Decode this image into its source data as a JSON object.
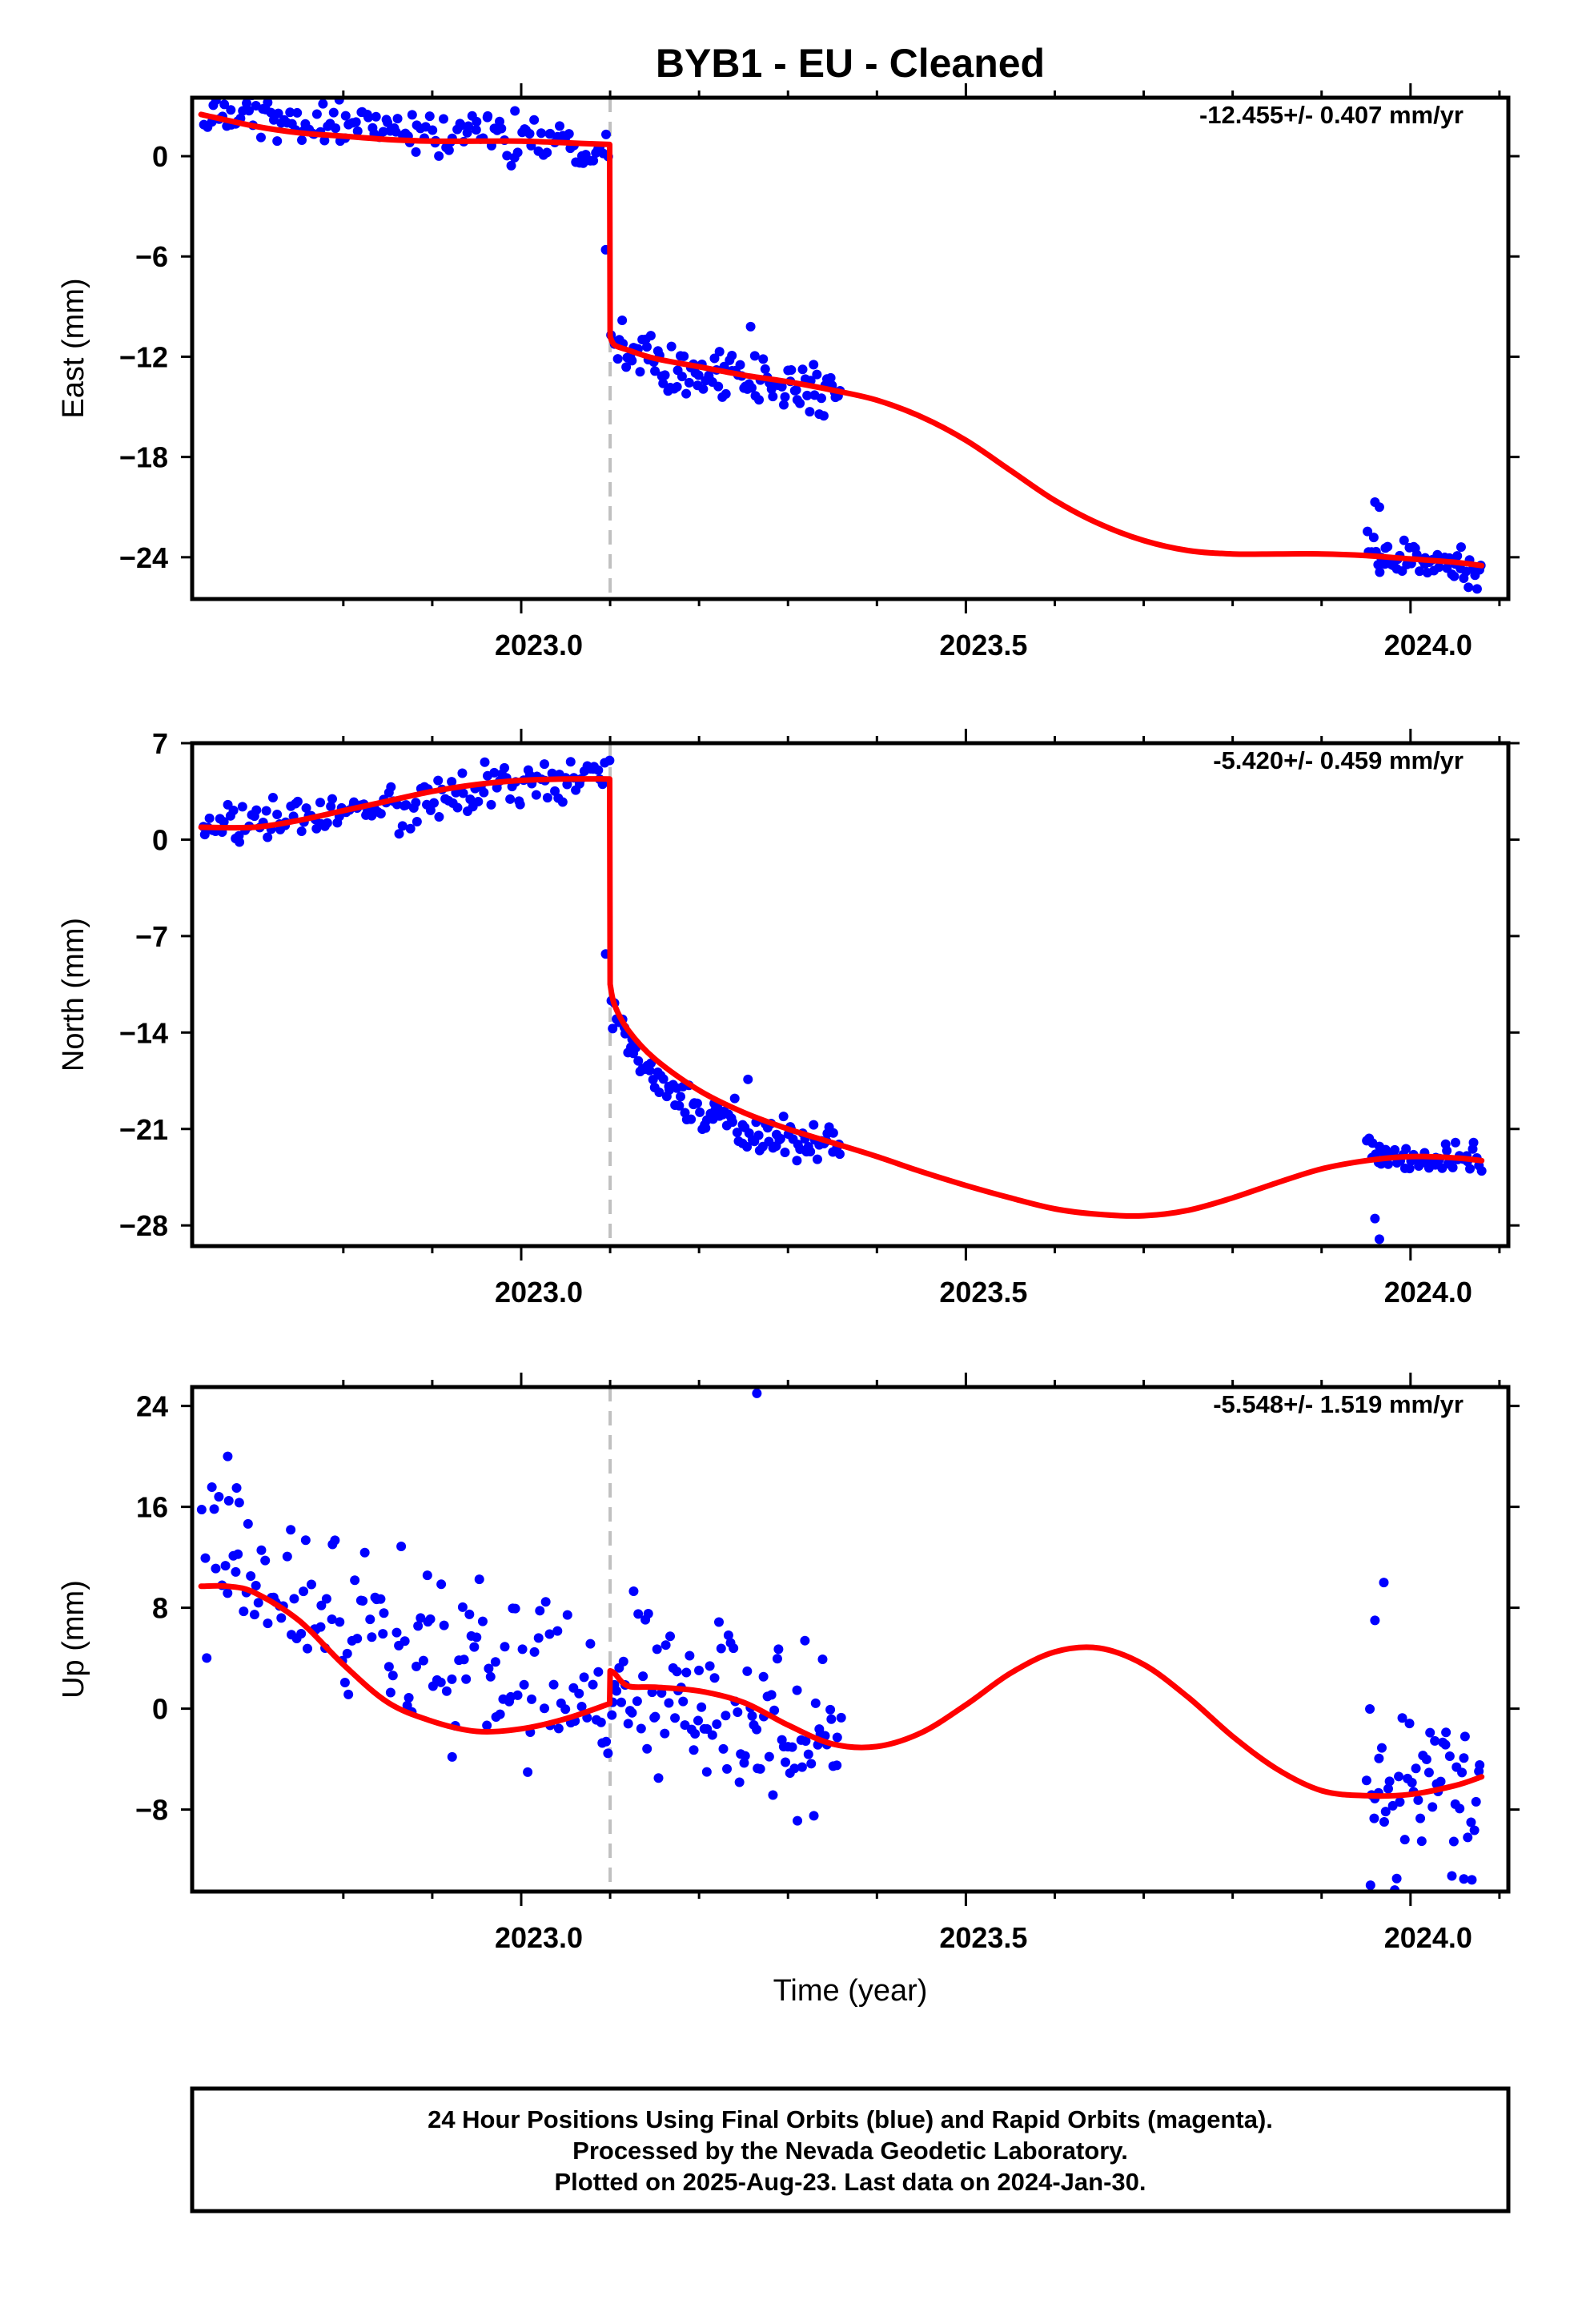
{
  "title": "BYB1  - EU - Cleaned",
  "x_axis": {
    "label": "Time (year)",
    "range": [
      2022.63,
      2024.11
    ],
    "major_ticks": [
      2023.0,
      2023.5,
      2024.0
    ],
    "major_tick_labels": [
      "2023.0",
      "2023.5",
      "2024.0"
    ],
    "minor_ticks": [
      2022.8,
      2022.9,
      2023.1,
      2023.2,
      2023.3,
      2023.4,
      2023.6,
      2023.7,
      2023.8,
      2023.9,
      2024.1
    ]
  },
  "offset_marker_epoch": 2023.1,
  "colors": {
    "final_orbits": "#0000ff",
    "model": "#ff0000",
    "offset_marker": "#c0c0c0"
  },
  "chart_data": [
    {
      "type": "scatter",
      "component": "East",
      "ylabel": "East (mm)",
      "ylim": [
        -26.5,
        3.5
      ],
      "y_ticks": [
        0,
        -6,
        -12,
        -18,
        -24
      ],
      "y_tick_labels": [
        "0",
        "−6",
        "−12",
        "−18",
        "−24"
      ],
      "rate_label": "-12.455+/- 0.407 mm/yr",
      "series": [
        {
          "kind": "points",
          "clusters": [
            {
              "x_range": [
                2022.64,
                2023.1
              ],
              "pattern": "trend",
              "y_start": 2.5,
              "y_end": 0.8,
              "spread": 1.6,
              "count": 150
            },
            {
              "x_range": [
                2023.1,
                2023.36
              ],
              "pattern": "postseismic",
              "y_start": -10.5,
              "y_end": -14.0,
              "spread": 1.7,
              "count": 110
            },
            {
              "x_range": [
                2023.95,
                2024.08
              ],
              "pattern": "trend",
              "y_start": -23.7,
              "y_end": -24.8,
              "spread": 1.3,
              "count": 55
            }
          ],
          "outliers": [
            [
              2023.095,
              -5.6
            ],
            [
              2023.96,
              -20.7
            ],
            [
              2023.965,
              -21.0
            ],
            [
              2023.258,
              -10.2
            ]
          ]
        },
        {
          "kind": "model",
          "x": [
            2022.64,
            2022.7,
            2022.75,
            2022.8,
            2022.85,
            2022.9,
            2022.95,
            2023.0,
            2023.05,
            2023.0995,
            2023.1,
            2023.105,
            2023.12,
            2023.15,
            2023.2,
            2023.25,
            2023.3,
            2023.35,
            2023.4,
            2023.45,
            2023.5,
            2023.55,
            2023.6,
            2023.65,
            2023.7,
            2023.75,
            2023.8,
            2023.85,
            2023.9,
            2023.95,
            2024.0,
            2024.05,
            2024.08
          ],
          "y": [
            2.5,
            1.8,
            1.4,
            1.2,
            1.0,
            0.9,
            0.9,
            0.9,
            0.8,
            0.7,
            -10.8,
            -11.3,
            -11.6,
            -12.1,
            -12.6,
            -13.1,
            -13.5,
            -14.0,
            -14.6,
            -15.6,
            -17.0,
            -18.8,
            -20.6,
            -22.0,
            -23.0,
            -23.6,
            -23.8,
            -23.8,
            -23.8,
            -23.9,
            -24.1,
            -24.3,
            -24.5
          ]
        }
      ]
    },
    {
      "type": "scatter",
      "component": "North",
      "ylabel": "North (mm)",
      "ylim": [
        -29.5,
        7
      ],
      "y_ticks": [
        7,
        0,
        -7,
        -14,
        -21,
        -28
      ],
      "y_tick_labels": [
        "7",
        "0",
        "−7",
        "−14",
        "−21",
        "−28"
      ],
      "rate_label": "-5.420+/- 0.459 mm/yr",
      "series": [
        {
          "kind": "points",
          "clusters": [
            {
              "x_range": [
                2022.64,
                2023.1
              ],
              "pattern": "trend",
              "y_start": 0.5,
              "y_end": 4.8,
              "spread": 1.8,
              "count": 150
            },
            {
              "x_range": [
                2023.1,
                2023.36
              ],
              "pattern": "postseismic",
              "y_start": -12.5,
              "y_end": -22.3,
              "spread": 1.8,
              "count": 110
            },
            {
              "x_range": [
                2023.95,
                2024.08
              ],
              "pattern": "trend",
              "y_start": -22.8,
              "y_end": -23.5,
              "spread": 1.4,
              "count": 55
            }
          ],
          "outliers": [
            [
              2023.095,
              -8.3
            ],
            [
              2023.965,
              -29.0
            ],
            [
              2023.96,
              -27.5
            ],
            [
              2023.255,
              -17.4
            ]
          ]
        },
        {
          "kind": "model",
          "x": [
            2022.64,
            2022.7,
            2022.75,
            2022.8,
            2022.85,
            2022.9,
            2022.95,
            2023.0,
            2023.05,
            2023.0995,
            2023.1,
            2023.105,
            2023.12,
            2023.15,
            2023.2,
            2023.25,
            2023.3,
            2023.35,
            2023.4,
            2023.45,
            2023.5,
            2023.55,
            2023.6,
            2023.65,
            2023.7,
            2023.75,
            2023.8,
            2023.85,
            2023.9,
            2023.95,
            2024.0,
            2024.05,
            2024.08
          ],
          "y": [
            0.9,
            0.9,
            1.4,
            2.1,
            2.8,
            3.5,
            4.0,
            4.3,
            4.4,
            4.4,
            -10.5,
            -12.0,
            -13.8,
            -15.9,
            -18.2,
            -19.8,
            -21.0,
            -22.0,
            -23.0,
            -24.1,
            -25.1,
            -26.0,
            -26.8,
            -27.2,
            -27.3,
            -26.9,
            -26.0,
            -24.9,
            -23.9,
            -23.3,
            -23.0,
            -23.1,
            -23.3
          ]
        }
      ]
    },
    {
      "type": "scatter",
      "component": "Up",
      "ylabel": "Up (mm)",
      "ylim": [
        -14.5,
        25.5
      ],
      "y_ticks": [
        24,
        16,
        8,
        0,
        -8
      ],
      "y_tick_labels": [
        "24",
        "16",
        "8",
        "0",
        "−8"
      ],
      "rate_label": "-5.548+/- 1.519 mm/yr",
      "series": [
        {
          "kind": "points",
          "clusters": [
            {
              "x_range": [
                2022.64,
                2023.1
              ],
              "pattern": "trend",
              "y_start": 12.0,
              "y_end": -1.0,
              "spread": 7.0,
              "count": 150
            },
            {
              "x_range": [
                2023.1,
                2023.36
              ],
              "pattern": "trend",
              "y_start": 2.0,
              "y_end": -3.0,
              "spread": 7.0,
              "count": 110
            },
            {
              "x_range": [
                2023.95,
                2024.08
              ],
              "pattern": "trend",
              "y_start": -6.5,
              "y_end": -5.5,
              "spread": 7.0,
              "count": 55
            }
          ],
          "outliers": [
            [
              2023.265,
              25.0
            ],
            [
              2022.67,
              20.0
            ],
            [
              2022.68,
              17.5
            ],
            [
              2023.97,
              10.0
            ],
            [
              2023.96,
              7.0
            ],
            [
              2023.955,
              -14.0
            ],
            [
              2024.06,
              -13.5
            ]
          ]
        },
        {
          "kind": "model",
          "x": [
            2022.64,
            2022.67,
            2022.7,
            2022.75,
            2022.8,
            2022.85,
            2022.9,
            2022.95,
            2023.0,
            2023.05,
            2023.0995,
            2023.1,
            2023.105,
            2023.12,
            2023.15,
            2023.2,
            2023.25,
            2023.3,
            2023.35,
            2023.4,
            2023.45,
            2023.5,
            2023.55,
            2023.6,
            2023.65,
            2023.7,
            2023.75,
            2023.8,
            2023.85,
            2023.9,
            2023.95,
            2024.0,
            2024.05,
            2024.08
          ],
          "y": [
            9.7,
            9.7,
            9.2,
            7.0,
            3.5,
            0.5,
            -1.0,
            -1.8,
            -1.6,
            -0.8,
            0.4,
            3.0,
            2.8,
            1.8,
            1.7,
            1.4,
            0.5,
            -1.3,
            -2.8,
            -3.0,
            -1.9,
            0.3,
            2.8,
            4.5,
            4.8,
            3.5,
            0.9,
            -2.2,
            -4.8,
            -6.5,
            -6.9,
            -6.8,
            -6.1,
            -5.4
          ]
        }
      ]
    }
  ],
  "footer": {
    "lines": [
      "24 Hour Positions Using Final Orbits (blue) and Rapid Orbits (magenta).",
      "Processed by the Nevada Geodetic Laboratory.",
      "Plotted on 2025-Aug-23. Last data on 2024-Jan-30."
    ]
  }
}
